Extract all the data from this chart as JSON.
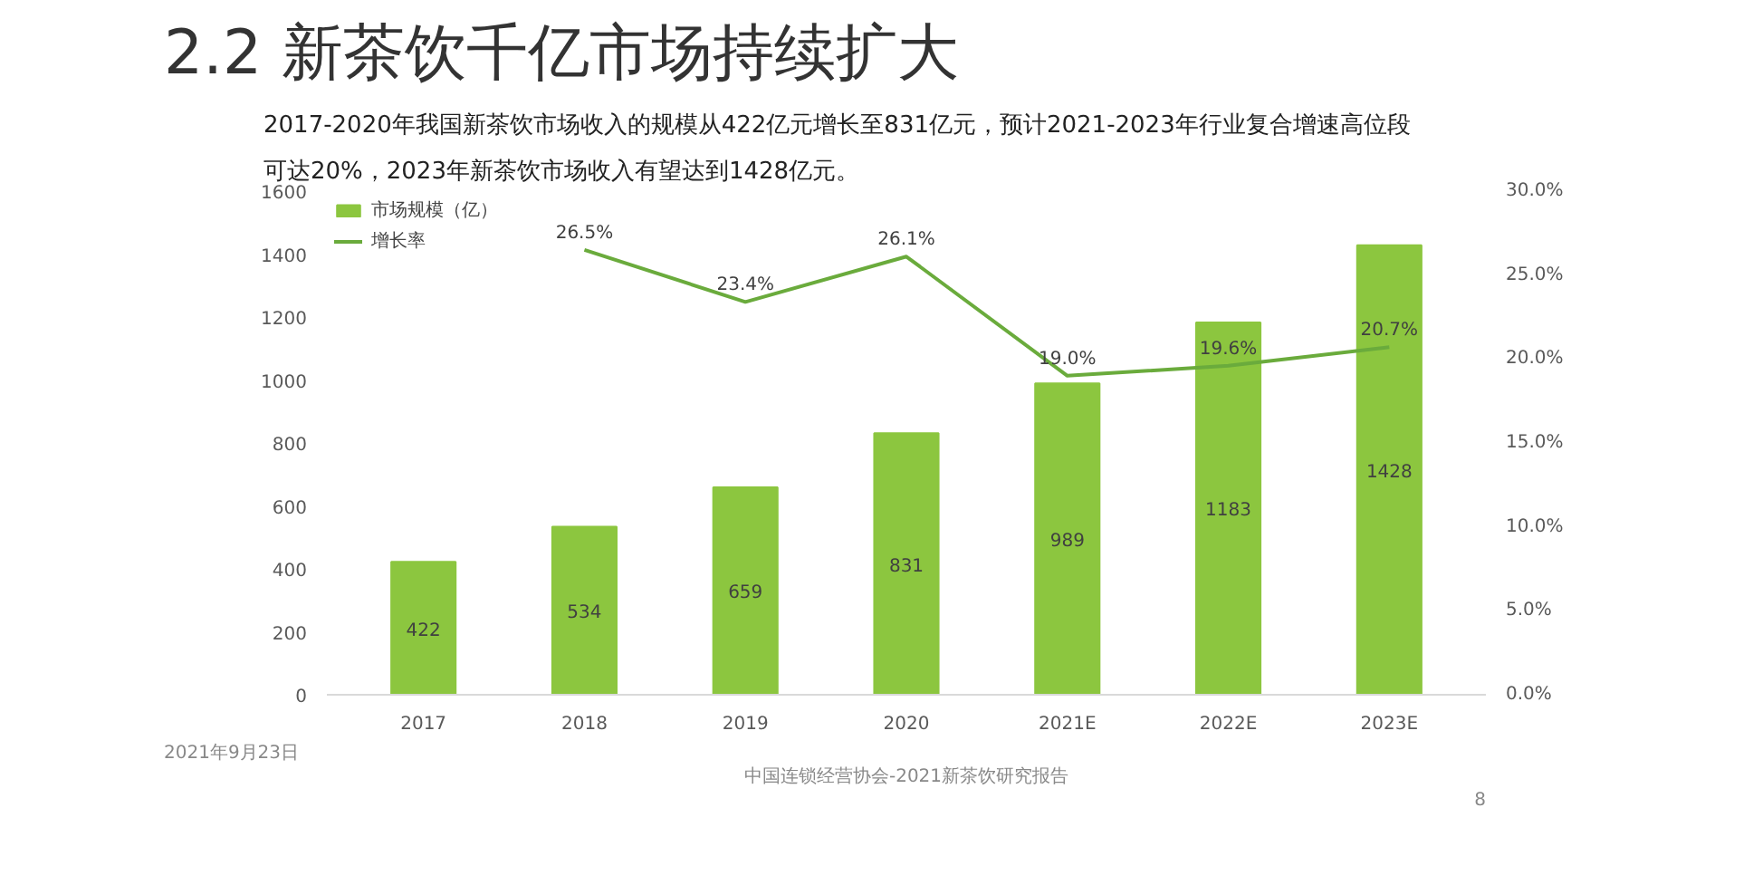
{
  "chart_data": {
    "type": "bar",
    "title": "2.2 新茶饮千亿市场持续扩大",
    "subtitle": "2017-2020年我国新茶饮市场收入的规模从422亿元增长至831亿元，预计2021-2023年行业复合增速高位段可达20%，2023年新茶饮市场收入有望达到1428亿元。",
    "categories": [
      "2017",
      "2018",
      "2019",
      "2020",
      "2021E",
      "2022E",
      "2023E"
    ],
    "series": [
      {
        "name": "市场规模（亿）",
        "color": "#8cc63f",
        "values": [
          422,
          534,
          659,
          831,
          989,
          1183,
          1428
        ],
        "value_labels": [
          "422",
          "534",
          "659",
          "831",
          "989",
          "1183",
          "1428"
        ]
      },
      {
        "name": "增长率",
        "type": "line",
        "axis": "y2",
        "color": "#6aab3c",
        "values": [
          null,
          26.5,
          23.4,
          26.1,
          19.0,
          19.6,
          20.7
        ],
        "value_labels": [
          null,
          "26.5%",
          "23.4%",
          "26.1%",
          "19.0%",
          "19.6%",
          "20.7%"
        ]
      }
    ],
    "ylim": [
      0,
      1600
    ],
    "yticks": [
      0,
      200,
      400,
      600,
      800,
      1000,
      1200,
      1400,
      1600
    ],
    "y2lim": [
      0,
      30
    ],
    "y2ticks": [
      {
        "value": 0,
        "label": "0.0%"
      },
      {
        "value": 5,
        "label": "5.0%"
      },
      {
        "value": 10,
        "label": "10.0%"
      },
      {
        "value": 15,
        "label": "15.0%"
      },
      {
        "value": 20,
        "label": "20.0%"
      },
      {
        "value": 25,
        "label": "25.0%"
      },
      {
        "value": 30,
        "label": "30.0%"
      }
    ],
    "grid": false,
    "legend": "top left",
    "marker": "none",
    "line_style": "solid",
    "annotations": [
      "2021年9月23日",
      "中国连锁经营协会-2021新茶饮研究报告",
      "8"
    ]
  }
}
